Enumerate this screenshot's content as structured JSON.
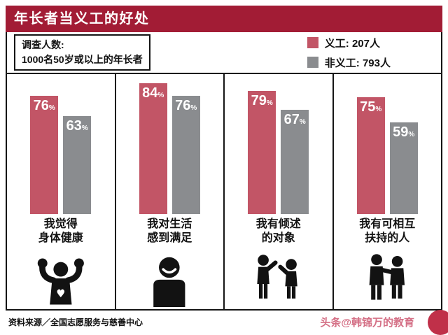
{
  "header": {
    "title": "年长者当义工的好处"
  },
  "survey": {
    "line1": "调查人数:",
    "line2": "1000名50岁或以上的年长者"
  },
  "legend": {
    "items": [
      {
        "label": "义工: 207人"
      },
      {
        "label": "非义工: 793人"
      }
    ]
  },
  "colors": {
    "title_bg": "#a21c35",
    "volunteer": "#c25566",
    "non_volunteer": "#8a8c8f",
    "watermark": "#d06078",
    "badge": "#c03049"
  },
  "chart_data": {
    "type": "bar",
    "categories": [
      "我觉得身体健康",
      "我对生活感到满足",
      "我有倾述的对象",
      "我有可相互扶持的人"
    ],
    "series": [
      {
        "name": "义工",
        "values": [
          76,
          84,
          79,
          75
        ]
      },
      {
        "name": "非义工",
        "values": [
          63,
          76,
          67,
          59
        ]
      }
    ],
    "unit": "%",
    "ylim": [
      0,
      90
    ],
    "grid": false,
    "legend_position": "top-right"
  },
  "panels": [
    {
      "line1": "我觉得",
      "line2": "身体健康"
    },
    {
      "line1": "我对生活",
      "line2": "感到满足"
    },
    {
      "line1": "我有倾述",
      "line2": "的对象"
    },
    {
      "line1": "我有可相互",
      "line2": "扶持的人"
    }
  ],
  "footer": {
    "source": "资料来源／全国志愿服务与慈善中心",
    "watermark": "头条@韩锦万的教育"
  }
}
